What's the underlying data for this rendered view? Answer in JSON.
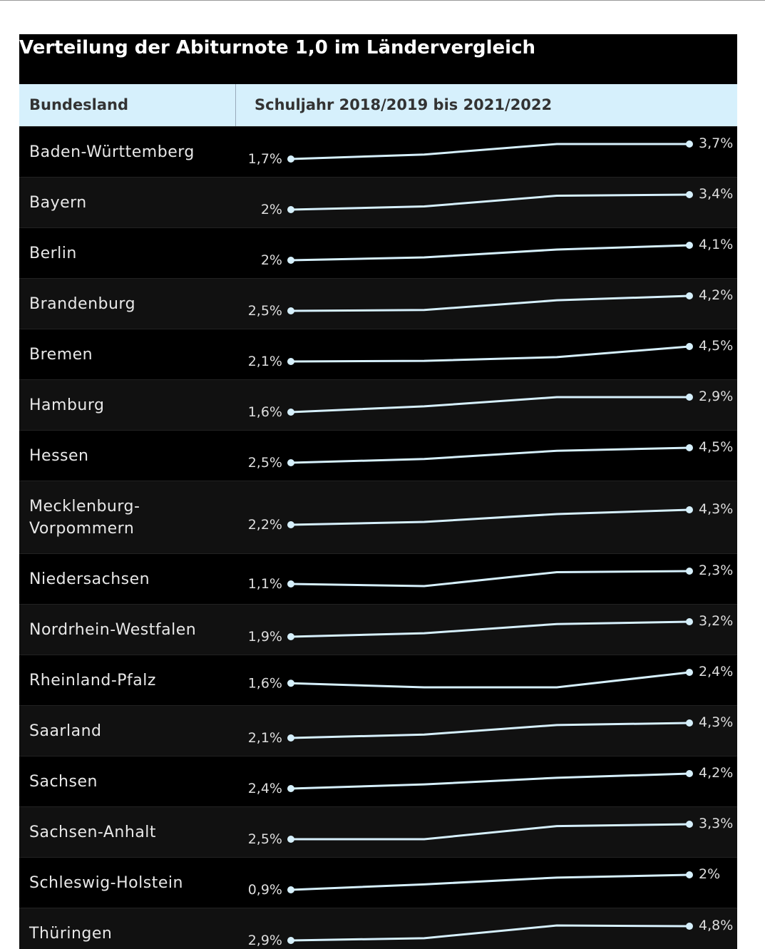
{
  "title": "Verteilung der Abiturnote 1,0 im Ländervergleich",
  "header": [
    "Bundesland",
    "Schuljahr 2018/2019 bis 2021/2022"
  ],
  "line_color": "#d6f0fc",
  "rows": [
    {
      "name": "Baden-Württemberg",
      "values": [
        1.7,
        2.3,
        3.7,
        3.7
      ],
      "value_labels": [
        "1,7%",
        null,
        null,
        "3,7%"
      ]
    },
    {
      "name": "Bayern",
      "values": [
        2,
        2.3,
        3.3,
        3.4
      ],
      "value_labels": [
        "2%",
        null,
        null,
        "3,4%"
      ]
    },
    {
      "name": "Berlin",
      "values": [
        2,
        2.4,
        3.5,
        4.1
      ],
      "value_labels": [
        "2%",
        null,
        null,
        "4,1%"
      ]
    },
    {
      "name": "Brandenburg",
      "values": [
        2.5,
        2.6,
        3.7,
        4.2
      ],
      "value_labels": [
        "2,5%",
        null,
        null,
        "4,2%"
      ]
    },
    {
      "name": "Bremen",
      "values": [
        2.1,
        2.2,
        2.8,
        4.5
      ],
      "value_labels": [
        "2,1%",
        null,
        null,
        "4,5%"
      ]
    },
    {
      "name": "Hamburg",
      "values": [
        1.6,
        2.1,
        2.9,
        2.9
      ],
      "value_labels": [
        "1,6%",
        null,
        null,
        "2,9%"
      ]
    },
    {
      "name": "Hessen",
      "values": [
        2.5,
        3.0,
        4.1,
        4.5
      ],
      "value_labels": [
        "2,5%",
        null,
        null,
        "4,5%"
      ]
    },
    {
      "name": "Mecklenburg-Vorpommern",
      "values": [
        2.2,
        2.6,
        3.7,
        4.3
      ],
      "value_labels": [
        "2,2%",
        null,
        null,
        "4,3%"
      ]
    },
    {
      "name": "Niedersachsen",
      "values": [
        1.1,
        0.9,
        2.2,
        2.3
      ],
      "value_labels": [
        "1,1%",
        null,
        null,
        "2,3%"
      ]
    },
    {
      "name": "Nordrhein-Westfalen",
      "values": [
        1.9,
        2.2,
        3.0,
        3.2
      ],
      "value_labels": [
        "1,9%",
        null,
        null,
        "3,2%"
      ]
    },
    {
      "name": "Rheinland-Pfalz",
      "values": [
        1.6,
        1.3,
        1.3,
        2.4
      ],
      "value_labels": [
        "1,6%",
        null,
        null,
        "2,4%"
      ]
    },
    {
      "name": "Saarland",
      "values": [
        2.1,
        2.6,
        4.0,
        4.3
      ],
      "value_labels": [
        "2,1%",
        null,
        null,
        "4,3%"
      ]
    },
    {
      "name": "Sachsen",
      "values": [
        2.4,
        2.9,
        3.7,
        4.2
      ],
      "value_labels": [
        "2,4%",
        null,
        null,
        "4,2%"
      ]
    },
    {
      "name": "Sachsen-Anhalt",
      "values": [
        2.5,
        2.5,
        3.2,
        3.3
      ],
      "value_labels": [
        "2,5%",
        null,
        null,
        "3,3%"
      ]
    },
    {
      "name": "Schleswig-Holstein",
      "values": [
        0.9,
        1.3,
        1.8,
        2
      ],
      "value_labels": [
        "0,9%",
        null,
        null,
        "2%"
      ]
    },
    {
      "name": "Thüringen",
      "values": [
        2.9,
        3.2,
        4.9,
        4.8
      ],
      "value_labels": [
        "2,9%",
        null,
        null,
        "4,8%"
      ]
    }
  ]
}
